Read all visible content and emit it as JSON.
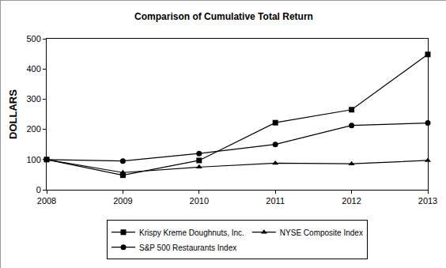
{
  "chart_data": {
    "type": "line",
    "title": "Comparison of Cumulative Total Return",
    "y_label": "DOLLARS",
    "x": [
      2008,
      2009,
      2010,
      2011,
      2012,
      2013
    ],
    "xlim": [
      2008,
      2013
    ],
    "xticks": [
      2008,
      2009,
      2010,
      2011,
      2012,
      2013
    ],
    "ylim": [
      0,
      500
    ],
    "yticks": [
      0,
      100,
      200,
      300,
      400,
      500
    ],
    "grid": false,
    "legend": "bottom",
    "series": [
      {
        "name": "Krispy Kreme Doughnuts, Inc.",
        "color": "#000000",
        "marker": "square",
        "line_style": "solid",
        "values": [
          100,
          48,
          97,
          222,
          265,
          448
        ]
      },
      {
        "name": "NYSE Composite Index",
        "color": "#000000",
        "marker": "triangle",
        "line_style": "solid",
        "values": [
          100,
          57,
          75,
          88,
          86,
          97
        ]
      },
      {
        "name": "S&P 500 Restaurants Index",
        "color": "#000000",
        "marker": "circle",
        "line_style": "solid",
        "values": [
          100,
          95,
          120,
          150,
          213,
          221
        ]
      }
    ]
  }
}
